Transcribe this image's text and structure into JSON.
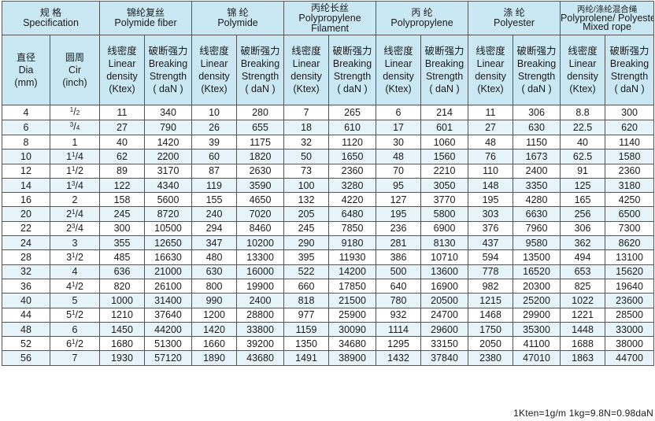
{
  "header": {
    "spec": {
      "cn": "规  格",
      "en": "Specification"
    },
    "groups": [
      {
        "cn": "锦纶复丝",
        "en": "Polymide fiber"
      },
      {
        "cn": "锦  纶",
        "en": "Polymide"
      },
      {
        "cn": "丙纶长丝",
        "en": "Polypropylene",
        "en2": "Filament"
      },
      {
        "cn": "丙  纶",
        "en": "Polypropylene"
      },
      {
        "cn": "涤  纶",
        "en": "Polyester"
      },
      {
        "cn": "丙纶/涤纶混合绳",
        "en": "Polyprolene/ Polyester",
        "en2": "Mixed rope"
      }
    ],
    "dia": {
      "cn": "直径",
      "en": "Dia",
      "unit": "(mm)"
    },
    "cir": {
      "cn": "圆周",
      "en": "Cir",
      "unit": "(inch)"
    },
    "linear": {
      "cn": "线密度",
      "l1": "Linear",
      "l2": "density",
      "unit": "(Ktex)"
    },
    "breaking": {
      "cn": "破断强力",
      "l1": "Breaking",
      "l2": "Strength",
      "unit": "( daN )"
    }
  },
  "rows": [
    {
      "dia": "4",
      "cir": {
        "whole": "",
        "num": "1",
        "den": "2"
      },
      "v": [
        "11",
        "340",
        "10",
        "280",
        "7",
        "265",
        "6",
        "214",
        "11",
        "306",
        "8.8",
        "300"
      ]
    },
    {
      "dia": "6",
      "cir": {
        "whole": "",
        "num": "3",
        "den": "4"
      },
      "v": [
        "27",
        "790",
        "26",
        "655",
        "18",
        "610",
        "17",
        "601",
        "27",
        "630",
        "22.5",
        "620"
      ]
    },
    {
      "dia": "8",
      "cir": {
        "whole": "1"
      },
      "v": [
        "40",
        "1420",
        "39",
        "1175",
        "32",
        "1120",
        "30",
        "1060",
        "48",
        "1150",
        "40",
        "1140"
      ]
    },
    {
      "dia": "10",
      "cir": {
        "whole": "1",
        "num": "1",
        "den": "4"
      },
      "v": [
        "62",
        "2200",
        "60",
        "1820",
        "50",
        "1650",
        "48",
        "1560",
        "76",
        "1673",
        "62.5",
        "1580"
      ]
    },
    {
      "dia": "12",
      "cir": {
        "whole": "1",
        "num": "1",
        "den": "2"
      },
      "v": [
        "89",
        "3170",
        "87",
        "2630",
        "73",
        "2360",
        "70",
        "2210",
        "110",
        "2400",
        "91",
        "2360"
      ]
    },
    {
      "dia": "14",
      "cir": {
        "whole": "1",
        "num": "3",
        "den": "4"
      },
      "v": [
        "122",
        "4340",
        "119",
        "3590",
        "100",
        "3280",
        "95",
        "3050",
        "148",
        "3350",
        "125",
        "3180"
      ]
    },
    {
      "dia": "16",
      "cir": {
        "whole": "2"
      },
      "v": [
        "158",
        "5600",
        "155",
        "4650",
        "132",
        "4220",
        "127",
        "3770",
        "195",
        "4280",
        "165",
        "4250"
      ]
    },
    {
      "dia": "20",
      "cir": {
        "whole": "2",
        "num": "1",
        "den": "4"
      },
      "v": [
        "245",
        "8720",
        "240",
        "7020",
        "205",
        "6480",
        "195",
        "5800",
        "303",
        "6630",
        "256",
        "6500"
      ]
    },
    {
      "dia": "22",
      "cir": {
        "whole": "2",
        "num": "3",
        "den": "4"
      },
      "v": [
        "300",
        "10500",
        "294",
        "8460",
        "245",
        "7850",
        "236",
        "6900",
        "376",
        "7960",
        "306",
        "7300"
      ]
    },
    {
      "dia": "24",
      "cir": {
        "whole": "3"
      },
      "v": [
        "355",
        "12650",
        "347",
        "10200",
        "290",
        "9180",
        "281",
        "8130",
        "437",
        "9580",
        "362",
        "8620"
      ]
    },
    {
      "dia": "28",
      "cir": {
        "whole": "3",
        "num": "1",
        "den": "2"
      },
      "v": [
        "485",
        "16630",
        "480",
        "13300",
        "395",
        "11930",
        "386",
        "10710",
        "594",
        "13500",
        "494",
        "13100"
      ]
    },
    {
      "dia": "32",
      "cir": {
        "whole": "4"
      },
      "v": [
        "636",
        "21000",
        "630",
        "16000",
        "522",
        "14200",
        "500",
        "13600",
        "778",
        "16520",
        "653",
        "15620"
      ]
    },
    {
      "dia": "36",
      "cir": {
        "whole": "4",
        "num": "1",
        "den": "2"
      },
      "v": [
        "820",
        "26100",
        "800",
        "19900",
        "660",
        "17850",
        "640",
        "16900",
        "982",
        "20300",
        "825",
        "19640"
      ]
    },
    {
      "dia": "40",
      "cir": {
        "whole": "5"
      },
      "v": [
        "1000",
        "31400",
        "990",
        "2400",
        "818",
        "21500",
        "780",
        "20500",
        "1215",
        "25200",
        "1022",
        "23600"
      ]
    },
    {
      "dia": "44",
      "cir": {
        "whole": "5",
        "num": "1",
        "den": "2"
      },
      "v": [
        "1210",
        "37640",
        "1200",
        "28800",
        "977",
        "25900",
        "932",
        "24700",
        "1468",
        "29900",
        "1221",
        "28500"
      ]
    },
    {
      "dia": "48",
      "cir": {
        "whole": "6"
      },
      "v": [
        "1450",
        "44200",
        "1420",
        "33800",
        "1159",
        "30090",
        "1114",
        "29600",
        "1750",
        "35300",
        "1448",
        "33000"
      ]
    },
    {
      "dia": "52",
      "cir": {
        "whole": "6",
        "num": "1",
        "den": "2"
      },
      "v": [
        "1680",
        "51300",
        "1660",
        "39200",
        "1350",
        "34680",
        "1295",
        "33150",
        "2050",
        "41100",
        "1688",
        "38000"
      ]
    },
    {
      "dia": "56",
      "cir": {
        "whole": "7"
      },
      "v": [
        "1930",
        "57120",
        "1890",
        "43680",
        "1491",
        "38900",
        "1432",
        "37840",
        "2380",
        "47010",
        "1863",
        "44700"
      ]
    }
  ],
  "footnote": "1Kten=1g/m  1kg=9.8N=0.98daN",
  "colors": {
    "header_bg": "#c9e8f4",
    "stripe_bg": "#e6f4fa",
    "border": "#555555"
  }
}
